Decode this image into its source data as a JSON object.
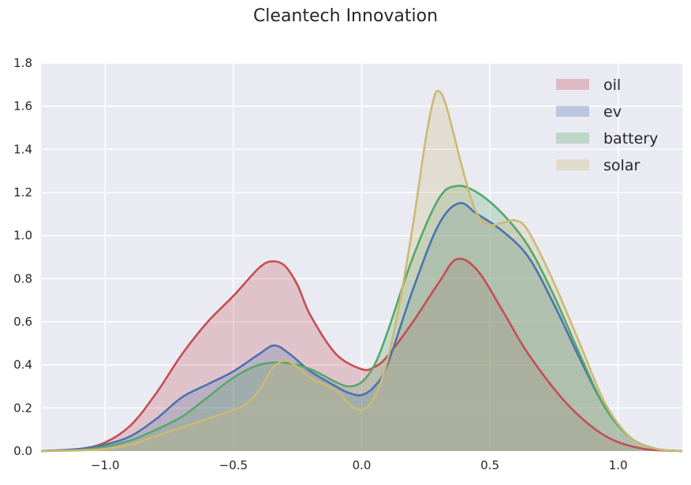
{
  "chart_data": {
    "type": "area",
    "title": "Cleantech Innovation",
    "xlabel": "",
    "ylabel": "",
    "xlim": [
      -1.25,
      1.25
    ],
    "ylim": [
      0,
      1.8
    ],
    "xticks": [
      -1.0,
      -0.5,
      0.0,
      0.5,
      1.0
    ],
    "xtick_labels": [
      "−1.0",
      "−0.5",
      "0.0",
      "0.5",
      "1.0"
    ],
    "yticks": [
      0,
      0.2,
      0.4,
      0.6,
      0.8,
      1.0,
      1.2,
      1.4,
      1.6,
      1.8
    ],
    "ytick_labels": [
      "0.0",
      "0.2",
      "0.4",
      "0.6",
      "0.8",
      "1.0",
      "1.2",
      "1.4",
      "1.6",
      "1.8"
    ],
    "grid": true,
    "legend_position": "top-right",
    "series": [
      {
        "name": "oil",
        "color": "#c44e52",
        "x": [
          -1.25,
          -1.1,
          -1.0,
          -0.9,
          -0.8,
          -0.7,
          -0.6,
          -0.5,
          -0.4,
          -0.35,
          -0.3,
          -0.25,
          -0.2,
          -0.1,
          0.0,
          0.05,
          0.1,
          0.2,
          0.3,
          0.37,
          0.45,
          0.55,
          0.65,
          0.8,
          0.95,
          1.1,
          1.25
        ],
        "y": [
          0.0,
          0.01,
          0.04,
          0.12,
          0.27,
          0.45,
          0.6,
          0.72,
          0.85,
          0.88,
          0.86,
          0.77,
          0.63,
          0.45,
          0.38,
          0.39,
          0.44,
          0.6,
          0.78,
          0.89,
          0.84,
          0.65,
          0.45,
          0.22,
          0.07,
          0.01,
          0.0
        ]
      },
      {
        "name": "ev",
        "color": "#4c72b0",
        "x": [
          -1.25,
          -1.1,
          -1.0,
          -0.9,
          -0.8,
          -0.7,
          -0.6,
          -0.5,
          -0.4,
          -0.34,
          -0.28,
          -0.2,
          -0.1,
          -0.05,
          0.0,
          0.05,
          0.1,
          0.2,
          0.3,
          0.38,
          0.45,
          0.55,
          0.65,
          0.75,
          0.85,
          0.95,
          1.05,
          1.15,
          1.25
        ],
        "y": [
          0.0,
          0.01,
          0.03,
          0.07,
          0.15,
          0.25,
          0.31,
          0.37,
          0.45,
          0.49,
          0.45,
          0.37,
          0.3,
          0.27,
          0.26,
          0.3,
          0.4,
          0.75,
          1.05,
          1.15,
          1.1,
          1.02,
          0.9,
          0.68,
          0.43,
          0.2,
          0.06,
          0.01,
          0.0
        ]
      },
      {
        "name": "battery",
        "color": "#55a868",
        "x": [
          -1.25,
          -1.1,
          -1.0,
          -0.9,
          -0.8,
          -0.7,
          -0.6,
          -0.5,
          -0.4,
          -0.3,
          -0.2,
          -0.1,
          -0.05,
          0.0,
          0.05,
          0.1,
          0.2,
          0.3,
          0.37,
          0.45,
          0.55,
          0.65,
          0.75,
          0.85,
          0.95,
          1.05,
          1.15,
          1.25
        ],
        "y": [
          0.0,
          0.005,
          0.02,
          0.05,
          0.1,
          0.16,
          0.25,
          0.34,
          0.4,
          0.41,
          0.38,
          0.32,
          0.3,
          0.32,
          0.4,
          0.55,
          0.9,
          1.17,
          1.23,
          1.2,
          1.1,
          0.95,
          0.72,
          0.45,
          0.2,
          0.06,
          0.01,
          0.0
        ]
      },
      {
        "name": "solar",
        "color": "#ccb974",
        "x": [
          -1.25,
          -1.1,
          -1.0,
          -0.9,
          -0.8,
          -0.7,
          -0.6,
          -0.5,
          -0.45,
          -0.4,
          -0.35,
          -0.3,
          -0.25,
          -0.2,
          -0.1,
          -0.05,
          0.0,
          0.05,
          0.1,
          0.15,
          0.2,
          0.25,
          0.28,
          0.3,
          0.33,
          0.4,
          0.45,
          0.5,
          0.55,
          0.6,
          0.65,
          0.75,
          0.85,
          0.95,
          1.05,
          1.15,
          1.25
        ],
        "y": [
          0.0,
          0.003,
          0.01,
          0.03,
          0.07,
          0.11,
          0.15,
          0.19,
          0.22,
          0.28,
          0.38,
          0.42,
          0.39,
          0.34,
          0.28,
          0.22,
          0.19,
          0.25,
          0.42,
          0.7,
          1.05,
          1.45,
          1.63,
          1.67,
          1.6,
          1.28,
          1.1,
          1.05,
          1.06,
          1.07,
          1.02,
          0.78,
          0.5,
          0.22,
          0.06,
          0.01,
          0.0
        ]
      }
    ]
  }
}
